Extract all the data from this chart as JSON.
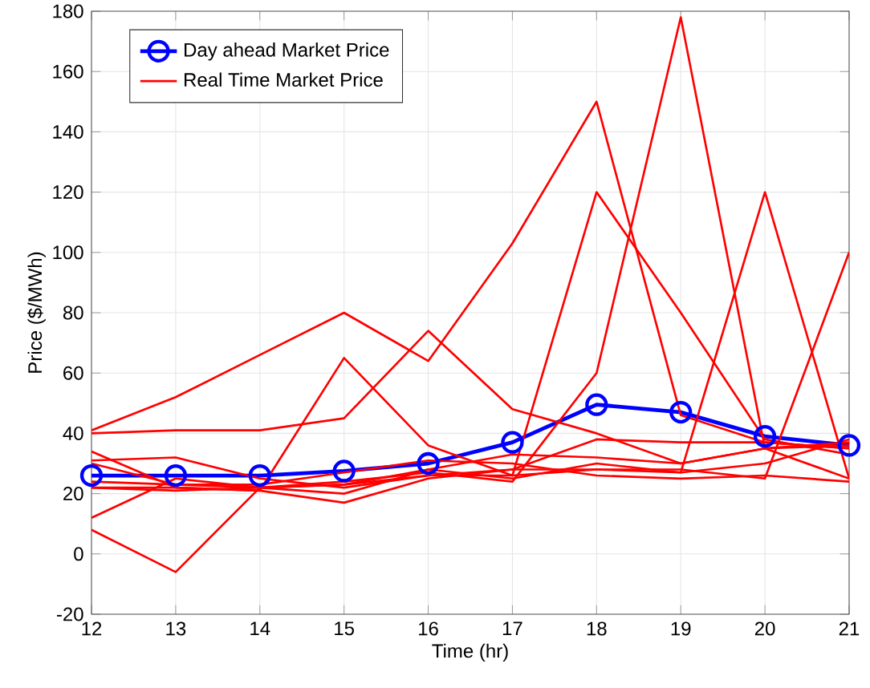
{
  "chart_data": {
    "type": "line",
    "xlabel": "Time (hr)",
    "ylabel": "Price ($/MWh)",
    "x": [
      12,
      13,
      14,
      15,
      16,
      17,
      18,
      19,
      20,
      21
    ],
    "xlim": [
      12,
      21
    ],
    "xticks": [
      12,
      13,
      14,
      15,
      16,
      17,
      18,
      19,
      20,
      21
    ],
    "ylim": [
      -20,
      180
    ],
    "yticks": [
      -20,
      0,
      20,
      40,
      60,
      80,
      100,
      120,
      140,
      160,
      180
    ],
    "grid": true,
    "legend": "top left",
    "series": [
      {
        "name": "Day ahead Market Price",
        "color": "#0000ff",
        "marker": "circle",
        "values": [
          26,
          26,
          26,
          27.5,
          30,
          37,
          49.5,
          47,
          39,
          36
        ]
      },
      {
        "name": "Real Time Market Price",
        "color": "#ff0000",
        "values": [
          41,
          52,
          66,
          80,
          64,
          103,
          150,
          46,
          37,
          35
        ]
      },
      {
        "color": "#ff0000",
        "values": [
          40,
          41,
          41,
          45,
          74,
          48,
          40,
          30,
          35,
          36
        ]
      },
      {
        "color": "#ff0000",
        "values": [
          34,
          22,
          21,
          65,
          36,
          26,
          120,
          80,
          38,
          33
        ]
      },
      {
        "color": "#ff0000",
        "values": [
          8,
          -6,
          22,
          24,
          27,
          24,
          60,
          178,
          35,
          25
        ]
      },
      {
        "color": "#ff0000",
        "values": [
          12,
          25,
          22,
          20,
          28,
          25,
          30,
          27,
          120,
          25
        ]
      },
      {
        "color": "#ff0000",
        "values": [
          31,
          32,
          25,
          22,
          26,
          26,
          28,
          28,
          25,
          100
        ]
      },
      {
        "color": "#ff0000",
        "values": [
          22,
          22,
          21,
          17,
          25,
          28,
          38,
          37,
          37,
          35
        ]
      },
      {
        "color": "#ff0000",
        "values": [
          24,
          23,
          22,
          23,
          28,
          33,
          32,
          30,
          35,
          37
        ]
      },
      {
        "color": "#ff0000",
        "values": [
          30,
          23,
          23,
          27,
          31,
          30,
          26,
          25,
          26,
          24
        ]
      },
      {
        "color": "#ff0000",
        "values": [
          22,
          21,
          22,
          23,
          26,
          28,
          28,
          27,
          30,
          38
        ]
      }
    ]
  }
}
